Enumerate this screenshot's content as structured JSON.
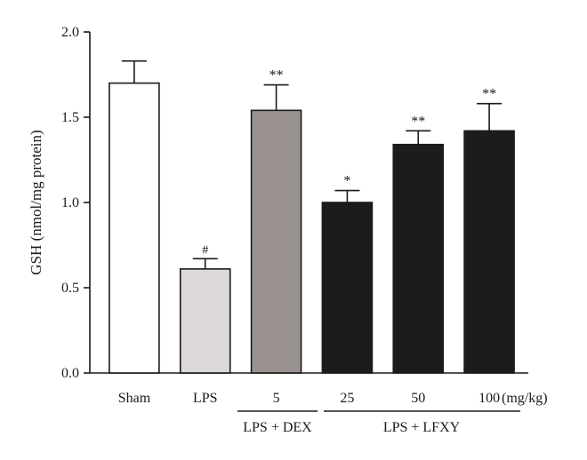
{
  "chart_data": {
    "type": "bar",
    "categories": [
      "Sham",
      "LPS",
      "5",
      "25",
      "50",
      "100"
    ],
    "values": [
      1.7,
      0.61,
      1.54,
      1.0,
      1.34,
      1.42
    ],
    "errors": [
      0.13,
      0.06,
      0.15,
      0.07,
      0.08,
      0.16
    ],
    "annotations": [
      "",
      "#",
      "**",
      "*",
      "**",
      "**"
    ],
    "colors": [
      "#ffffff",
      "#ddd8da",
      "#9a9290",
      "#1c1c1c",
      "#1c1c1c",
      "#1c1c1c"
    ],
    "ylabel": "GSH (nmol/mg protein)",
    "ylim": [
      0,
      2.0
    ],
    "yticks": [
      "0.0",
      "0.5",
      "1.0",
      "1.5",
      "2.0"
    ],
    "unit_label": "(mg/kg)",
    "groups": [
      {
        "label": "LPS + DEX",
        "categories": [
          "5"
        ]
      },
      {
        "label": "LPS + LFXY",
        "categories": [
          "25",
          "50",
          "100"
        ]
      }
    ],
    "grid": false
  }
}
